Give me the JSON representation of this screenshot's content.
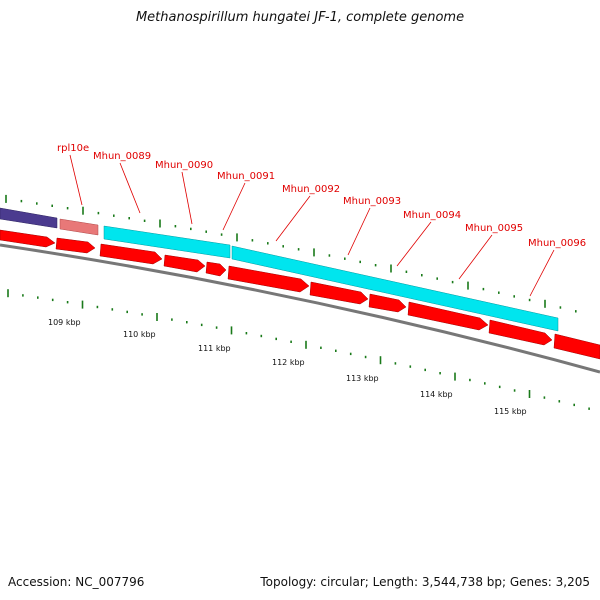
{
  "title": "Methanospirillum hungatei JF-1, complete genome",
  "footer": {
    "accession": "Accession: NC_007796",
    "stats": "Topology: circular; Length: 3,544,738 bp; Genes: 3,205"
  },
  "colors": {
    "cds": "#ff0000",
    "rna": "#e87878",
    "feature_cyan": "#00e5ee",
    "feature_purple": "#4b3b8f",
    "backbone": "#777777",
    "tick": "#1a7a1a",
    "label": "#e00000"
  },
  "scale_labels": [
    "109 kbp",
    "110 kbp",
    "111 kbp",
    "112 kbp",
    "113 kbp",
    "114 kbp",
    "115 kbp"
  ],
  "gene_labels": [
    "rpl10e",
    "Mhun_0089",
    "Mhun_0090",
    "Mhun_0091",
    "Mhun_0092",
    "Mhun_0093",
    "Mhun_0094",
    "Mhun_0095",
    "Mhun_0096"
  ]
}
